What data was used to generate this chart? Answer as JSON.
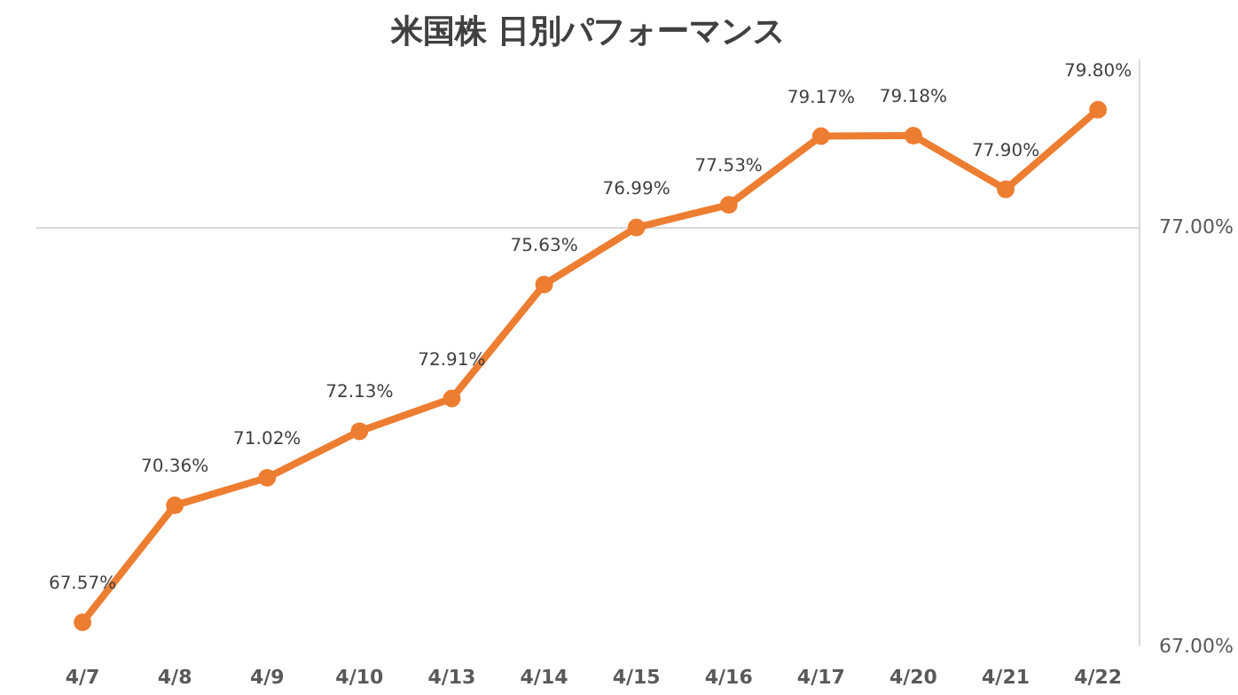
{
  "chart_data": {
    "type": "line",
    "title": "米国株 日別パフォーマンス",
    "categories": [
      "4/7",
      "4/8",
      "4/9",
      "4/10",
      "4/13",
      "4/14",
      "4/15",
      "4/16",
      "4/17",
      "4/20",
      "4/21",
      "4/22"
    ],
    "series": [
      {
        "color": "#ed7d31",
        "values": [
          67.57,
          70.36,
          71.02,
          72.13,
          72.91,
          75.63,
          76.99,
          77.53,
          79.17,
          79.18,
          77.9,
          79.8
        ],
        "value_labels": [
          "67.57%",
          "70.36%",
          "71.02%",
          "72.13%",
          "72.91%",
          "75.63%",
          "76.99%",
          "77.53%",
          "79.17%",
          "79.18%",
          "77.90%",
          "79.80%"
        ]
      }
    ],
    "ylim": [
      67,
      81
    ],
    "yticks": [
      {
        "value": 67,
        "label": "67.00%"
      },
      {
        "value": 77,
        "label": "77.00%"
      }
    ],
    "grid": "y",
    "marker": "circle",
    "line_style": "solid"
  }
}
